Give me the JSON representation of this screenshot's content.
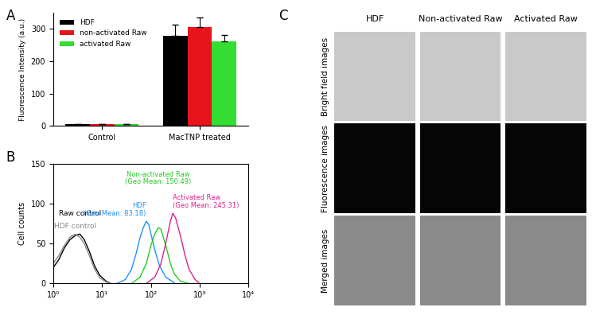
{
  "chart_data": [
    {
      "panel": "A",
      "type": "bar",
      "y_label": "Fluorescence Intensity (a.u.)",
      "categories": [
        "Control",
        "MacTNP treated"
      ],
      "series": [
        {
          "name": "HDF",
          "color": "#000000",
          "values": [
            5,
            278
          ],
          "errors": [
            0,
            35
          ]
        },
        {
          "name": "non-activated Raw",
          "color": "#e8141c",
          "values": [
            5,
            305
          ],
          "errors": [
            0,
            30
          ]
        },
        {
          "name": "activated Raw",
          "color": "#33dd33",
          "values": [
            7,
            260
          ],
          "errors": [
            0,
            22
          ]
        }
      ],
      "ylim": [
        0,
        350
      ],
      "yticks": [
        0,
        100,
        200,
        300
      ],
      "legend": "upper left"
    },
    {
      "panel": "B",
      "type": "line",
      "y_label": "Cell counts",
      "log": "x",
      "series": [
        {
          "name": "Raw control",
          "color": "#000000",
          "x": [
            1,
            1.3,
            1.7,
            2.2,
            2.8,
            3.5,
            4.3,
            5.5,
            7,
            9,
            12,
            15
          ],
          "values": [
            20,
            30,
            45,
            55,
            60,
            62,
            55,
            40,
            22,
            10,
            3,
            0
          ]
        },
        {
          "name": "HDF control",
          "color": "#888888",
          "x": [
            1,
            1.3,
            1.7,
            2.2,
            2.8,
            3.5,
            4.3,
            5.5,
            7,
            9,
            12,
            15
          ],
          "values": [
            25,
            35,
            48,
            58,
            62,
            58,
            50,
            35,
            18,
            7,
            2,
            0
          ]
        },
        {
          "name": "HDF",
          "color": "#1e90ff",
          "annotation": "(Geo Mean: 83.18)",
          "x": [
            20,
            30,
            40,
            50,
            60,
            70,
            80,
            90,
            100,
            120,
            150,
            200,
            300
          ],
          "values": [
            0,
            5,
            18,
            38,
            58,
            70,
            78,
            74,
            62,
            42,
            22,
            8,
            1
          ]
        },
        {
          "name": "Non-activated Raw",
          "color": "#22cc22",
          "annotation": "(Geo Mean: 150.49)",
          "x": [
            40,
            60,
            80,
            100,
            120,
            140,
            160,
            200,
            250,
            300,
            400,
            600
          ],
          "values": [
            0,
            8,
            25,
            48,
            62,
            70,
            68,
            48,
            25,
            12,
            3,
            0
          ]
        },
        {
          "name": "Activated Raw",
          "color": "#e0208a",
          "annotation": "(Geo Mean: 245.31)",
          "x": [
            80,
            120,
            160,
            200,
            250,
            280,
            320,
            400,
            500,
            600,
            800,
            1000
          ],
          "values": [
            0,
            8,
            25,
            50,
            78,
            88,
            82,
            60,
            35,
            18,
            5,
            0
          ]
        }
      ],
      "xlim": [
        1,
        10000
      ],
      "xticks": [
        {
          "value": 1,
          "label": "10⁰"
        },
        {
          "value": 10,
          "label": "10¹"
        },
        {
          "value": 100,
          "label": "10²"
        },
        {
          "value": 1000,
          "label": "10³"
        },
        {
          "value": 10000,
          "label": "10⁴"
        }
      ],
      "ylim": [
        0,
        150
      ],
      "yticks": [
        0,
        50,
        100,
        150
      ]
    }
  ],
  "image_grid": {
    "panel": "C",
    "columns": [
      "HDF",
      "Non-activated Raw",
      "Activated Raw"
    ],
    "rows": [
      "Bright field images",
      "Fluorescence images",
      "Merged images"
    ]
  }
}
